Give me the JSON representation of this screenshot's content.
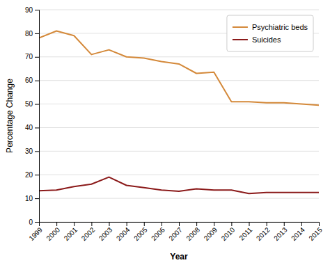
{
  "chart_data": {
    "type": "line",
    "x": [
      1999,
      2000,
      2001,
      2002,
      2003,
      2004,
      2005,
      2006,
      2007,
      2008,
      2009,
      2010,
      2011,
      2012,
      2013,
      2014,
      2015
    ],
    "series": [
      {
        "name": "Psychiatric beds",
        "color": "#D4893A",
        "values": [
          78,
          81,
          79,
          71,
          73,
          70,
          69.5,
          68,
          67,
          63,
          63.5,
          51,
          51,
          50.5,
          50.5,
          50,
          49.5
        ]
      },
      {
        "name": "Suicides",
        "color": "#8B1A1A",
        "values": [
          13.2,
          13.5,
          15,
          16,
          19,
          15.5,
          14.5,
          13.5,
          13,
          14,
          13.5,
          13.5,
          12,
          12.5,
          12.5,
          12.5,
          12.5
        ]
      }
    ],
    "xlabel": "Year",
    "ylabel": "Percentage Change",
    "xlim": [
      1999,
      2015
    ],
    "xticks": [
      1999,
      2000,
      2001,
      2002,
      2003,
      2004,
      2005,
      2006,
      2007,
      2008,
      2009,
      2010,
      2011,
      2012,
      2013,
      2014,
      2015
    ],
    "ylim": [
      0,
      90
    ],
    "yticks": [
      0,
      10,
      20,
      30,
      40,
      50,
      60,
      70,
      80,
      90
    ],
    "grid": true,
    "legend": "upper right"
  }
}
